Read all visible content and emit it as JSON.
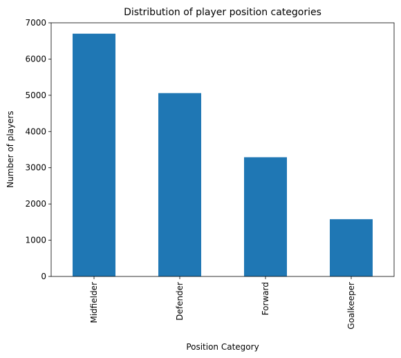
{
  "chart_data": {
    "type": "bar",
    "title": "Distribution of player position categories",
    "xlabel": "Position Category",
    "ylabel": "Number of players",
    "categories": [
      "Midfielder",
      "Defender",
      "Forward",
      "Goalkeeper"
    ],
    "values": [
      6700,
      5060,
      3290,
      1580
    ],
    "ylim": [
      0,
      7000
    ],
    "yticks": [
      0,
      1000,
      2000,
      3000,
      4000,
      5000,
      6000,
      7000
    ],
    "ytick_labels": [
      "0",
      "1000",
      "2000",
      "3000",
      "4000",
      "5000",
      "6000",
      "7000"
    ],
    "grid": false,
    "legend": "none",
    "bar_color": "#1f77b4",
    "tick_label_rotation": "vertical"
  }
}
